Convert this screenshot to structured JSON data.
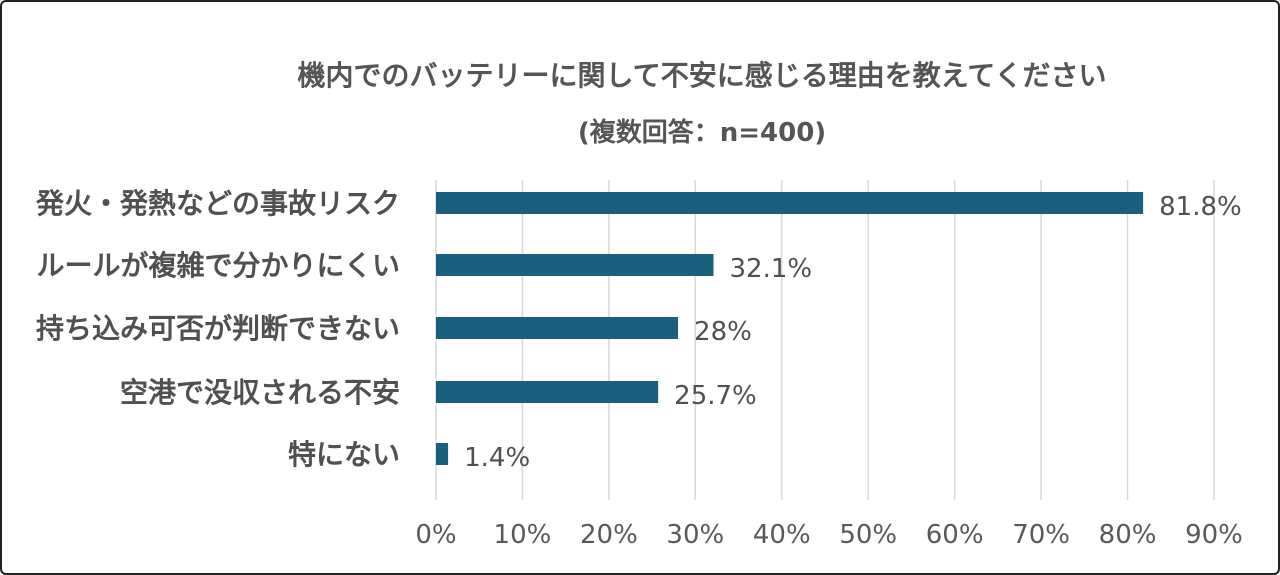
{
  "chart_data": {
    "type": "bar",
    "orientation": "horizontal",
    "title": "機内でのバッテリーに関して不安に感じる理由を教えてください",
    "subtitle": "(複数回答：n=400)",
    "categories": [
      "発火・発熱などの事故リスク",
      "ルールが複雑で分かりにくい",
      "持ち込み可否が判断できない",
      "空港で没収される不安",
      "特にない"
    ],
    "values": [
      81.8,
      32.1,
      28,
      25.7,
      1.4
    ],
    "value_labels": [
      "81.8%",
      "32.1%",
      "28%",
      "25.7%",
      "1.4%"
    ],
    "xlim": [
      0,
      90
    ],
    "xticks": [
      0,
      10,
      20,
      30,
      40,
      50,
      60,
      70,
      80,
      90
    ],
    "xtick_labels": [
      "0%",
      "10%",
      "20%",
      "30%",
      "40%",
      "50%",
      "60%",
      "70%",
      "80%",
      "90%"
    ],
    "grid": "vertical",
    "bar_color": "#1b5f7f",
    "grid_color": "#d9d9d9"
  }
}
